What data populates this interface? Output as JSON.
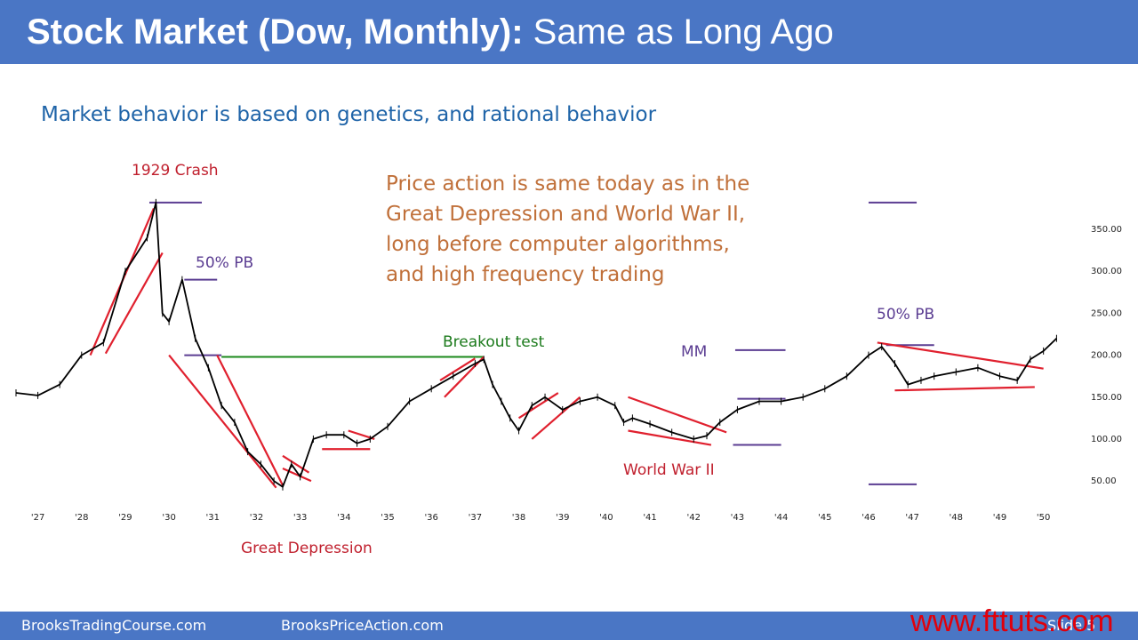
{
  "slide": {
    "title_bold": "Stock Market (Dow, Monthly):",
    "title_light": "Same as Long Ago",
    "subtitle": "Market behavior is based on genetics, and rational behavior",
    "note_lines": [
      "Price action is same today as in the",
      "Great Depression and World War II,",
      "long before computer algorithms,",
      "and high frequency trading"
    ],
    "footer_left": "BrooksTradingCourse.com",
    "footer_mid": "BrooksPriceAction.com",
    "slide_label": "Slide 5",
    "watermark": "www.fttuts.com"
  },
  "colors": {
    "header": "#4a76c5",
    "price": "#000000",
    "trendline": "#e0202e",
    "level": "#5b3d92",
    "breakout": "#1b8a1b",
    "label_red": "#c0202e",
    "label_purple": "#5b3d92",
    "label_green": "#1b7a1b"
  },
  "chart_data": {
    "type": "line",
    "series": [
      {
        "x": [
          1926.5,
          1927.0,
          1927.5,
          1928.0,
          1928.5,
          1929.0,
          1929.5,
          1929.7,
          1929.85,
          1930.0,
          1930.3,
          1930.6,
          1930.9,
          1931.2,
          1931.5,
          1931.8,
          1932.1,
          1932.4,
          1932.6,
          1932.8,
          1933.0,
          1933.3,
          1933.6,
          1934.0,
          1934.3,
          1934.6,
          1935.0,
          1935.5,
          1936.0,
          1936.5,
          1937.0,
          1937.2,
          1937.4,
          1937.6,
          1937.8,
          1938.0,
          1938.3,
          1938.6,
          1939.0,
          1939.4,
          1939.8,
          1940.2,
          1940.4,
          1940.6,
          1941.0,
          1941.5,
          1942.0,
          1942.3,
          1942.6,
          1943.0,
          1943.5,
          1944.0,
          1944.5,
          1945.0,
          1945.5,
          1946.0,
          1946.3,
          1946.6,
          1946.9,
          1947.2,
          1947.5,
          1948.0,
          1948.5,
          1949.0,
          1949.4,
          1949.7,
          1950.0,
          1950.3
        ],
        "y": [
          155,
          152,
          165,
          200,
          215,
          300,
          340,
          382,
          250,
          240,
          290,
          220,
          185,
          140,
          120,
          85,
          70,
          50,
          43,
          70,
          55,
          100,
          105,
          105,
          95,
          100,
          115,
          145,
          160,
          175,
          190,
          195,
          165,
          145,
          125,
          110,
          140,
          150,
          135,
          145,
          150,
          140,
          120,
          125,
          118,
          108,
          100,
          104,
          120,
          135,
          145,
          145,
          150,
          160,
          175,
          200,
          210,
          190,
          165,
          170,
          175,
          180,
          185,
          175,
          170,
          195,
          205,
          220
        ]
      }
    ],
    "x_ticks": [
      "'27",
      "'28",
      "'29",
      "'30",
      "'31",
      "'32",
      "'33",
      "'34",
      "'35",
      "'36",
      "'37",
      "'38",
      "'39",
      "'40",
      "'41",
      "'42",
      "'43",
      "'44",
      "'45",
      "'46",
      "'47",
      "'48",
      "'49",
      "'50"
    ],
    "y_ticks": [
      "350.00",
      "300.00",
      "250.00",
      "200.00",
      "150.00",
      "100.00",
      "50.00"
    ],
    "xlim": [
      1926.5,
      1950.8
    ],
    "ylim": [
      30,
      385
    ],
    "annotations": [
      {
        "text": "1929 Crash"
      },
      {
        "text": "50% PB"
      },
      {
        "text": "Breakout test"
      },
      {
        "text": "MM"
      },
      {
        "text": "50% PB"
      },
      {
        "text": "World War II"
      },
      {
        "text": "Great Depression"
      }
    ]
  }
}
